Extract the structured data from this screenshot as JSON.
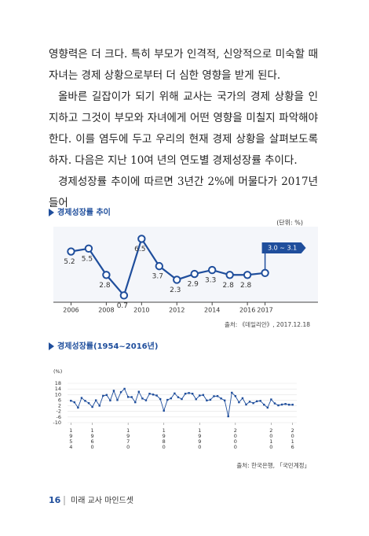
{
  "paragraphs": [
    "영향력은 더 크다. 특히 부모가 인격적, 신앙적으로 미숙할 때 자녀는 경제 상황으로부터 더 심한 영향을 받게 된다.",
    "올바른 길잡이가 되기 위해 교사는 국가의 경제 상황을 인지하고 그것이 부모와 자녀에게 어떤 영향을 미칠지 파악해야 한다. 이를 염두에 두고 우리의 현재 경제 상황을 살펴보도록 하자. 다음은 지난 10여 년의 연도별 경제성장률 추이다.",
    "경제성장률 추이에 따르면 3년간 2%에 머물다가 2017년 들어"
  ],
  "chart_data": [
    {
      "type": "line",
      "title": "경제성장률 추이",
      "unit": "(단위: %)",
      "source": "출처: 《데일리안》, 2017.12.18",
      "x": [
        2006,
        2007,
        2008,
        2009,
        2010,
        2011,
        2012,
        2013,
        2014,
        2015,
        2016,
        2017
      ],
      "values": [
        5.2,
        5.5,
        2.8,
        0.7,
        6.5,
        3.7,
        2.3,
        2.9,
        3.3,
        2.8,
        2.8,
        3.0
      ],
      "annotation": "3.0 ~ 3.1",
      "xlim": [
        2005,
        2020
      ],
      "xticks": [
        2006,
        2008,
        2010,
        2012,
        2014,
        2016,
        2017
      ],
      "ylim": [
        0,
        7.5
      ],
      "color": "#1f4e9c"
    },
    {
      "type": "line",
      "title": "경제성장률(1954~2016년)",
      "unit": "(%)",
      "source": "출처: 한국은행, 「국민계정」",
      "x": [
        1954,
        1955,
        1956,
        1957,
        1958,
        1959,
        1960,
        1961,
        1962,
        1963,
        1964,
        1965,
        1966,
        1967,
        1968,
        1969,
        1970,
        1971,
        1972,
        1973,
        1974,
        1975,
        1976,
        1977,
        1978,
        1979,
        1980,
        1981,
        1982,
        1983,
        1984,
        1985,
        1986,
        1987,
        1988,
        1989,
        1990,
        1991,
        1992,
        1993,
        1994,
        1995,
        1996,
        1997,
        1998,
        1999,
        2000,
        2001,
        2002,
        2003,
        2004,
        2005,
        2006,
        2007,
        2008,
        2009,
        2010,
        2011,
        2012,
        2013,
        2014,
        2015,
        2016
      ],
      "values": [
        5.6,
        4.5,
        0.7,
        7.6,
        5.5,
        3.9,
        1.2,
        5.9,
        2.1,
        9.1,
        9.7,
        5.8,
        12.7,
        6.1,
        11.7,
        14.1,
        8.3,
        8.2,
        4.5,
        12.0,
        7.2,
        5.9,
        10.6,
        10.0,
        9.3,
        6.8,
        -1.5,
        6.2,
        7.3,
        10.8,
        8.1,
        6.8,
        10.6,
        11.1,
        10.6,
        6.7,
        9.3,
        9.7,
        5.8,
        6.3,
        8.8,
        8.9,
        7.2,
        5.8,
        -5.5,
        11.3,
        8.9,
        4.5,
        7.4,
        2.9,
        4.9,
        3.9,
        5.2,
        5.5,
        2.8,
        0.7,
        6.5,
        3.7,
        2.3,
        2.9,
        3.3,
        2.8,
        2.8
      ],
      "xlim": [
        1953.5,
        2016.5
      ],
      "xticks": [
        1954,
        1960,
        1970,
        1980,
        1990,
        2000,
        2010,
        2016
      ],
      "ylim": [
        -10,
        18
      ],
      "yticks": [
        18,
        14,
        10,
        6,
        2,
        -2,
        -6,
        -10
      ],
      "grid": true,
      "color": "#1f4e9c"
    }
  ],
  "footer": {
    "page": "16",
    "book": "미래 교사 마인드셋"
  }
}
